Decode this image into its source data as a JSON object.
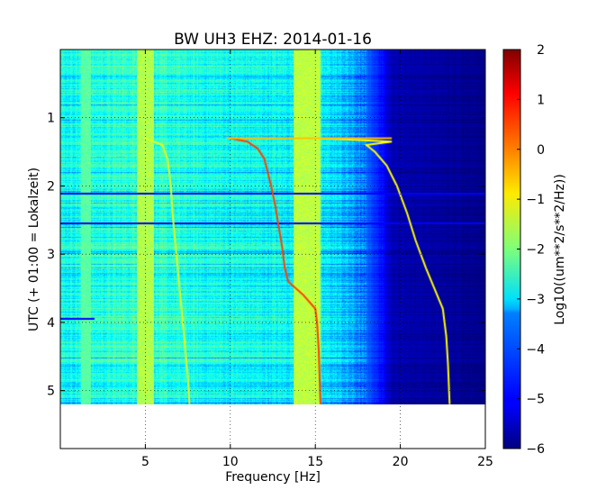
{
  "chart_data": {
    "type": "heatmap",
    "title": "BW UH3 EHZ: 2014-01-16",
    "xlabel": "Frequency [Hz]",
    "ylabel": "UTC (+ 01:00 = Lokalzeit)",
    "colorbar_label": "Log10((um**2/s**2/Hz))",
    "xlim": [
      0,
      25
    ],
    "ylim": [
      5.85,
      0
    ],
    "data_ymax": 5.2,
    "clim": [
      -6,
      2
    ],
    "x_ticks": [
      5,
      10,
      15,
      20,
      25
    ],
    "x_tick_labels": [
      "5",
      "10",
      "15",
      "20",
      "25"
    ],
    "y_ticks": [
      1,
      2,
      3,
      4,
      5
    ],
    "y_tick_labels": [
      "1",
      "2",
      "3",
      "4",
      "5"
    ],
    "colorbar_ticks": [
      2,
      1,
      0,
      -1,
      -2,
      -3,
      -4,
      -5,
      -6
    ],
    "colorbar_tick_labels": [
      "2",
      "1",
      "0",
      "−1",
      "−2",
      "−3",
      "−4",
      "−5",
      "−6"
    ],
    "colormap": "jet",
    "grid": true,
    "traces": [
      {
        "t": [
          1.3,
          1.4,
          1.6,
          1.8,
          2.0,
          2.4,
          2.8,
          3.2,
          3.6,
          4.0,
          4.4,
          4.8,
          5.2
        ],
        "f": [
          5.0,
          6.0,
          6.3,
          6.4,
          6.5,
          6.6,
          6.75,
          6.9,
          7.05,
          7.2,
          7.35,
          7.5,
          7.6
        ],
        "level": -1.2
      },
      {
        "t": [
          1.3,
          1.35,
          1.45,
          1.6,
          1.8,
          2.0,
          2.3,
          2.6,
          2.9,
          3.2,
          3.4,
          3.6,
          3.8,
          4.0,
          4.4,
          4.8,
          5.2
        ],
        "f": [
          10.0,
          11.0,
          11.6,
          12.0,
          12.2,
          12.4,
          12.65,
          12.85,
          13.05,
          13.2,
          13.4,
          14.3,
          15.0,
          15.1,
          15.2,
          15.25,
          15.3
        ],
        "level": 0.5
      },
      {
        "t": [
          1.3,
          1.32,
          1.35,
          1.4,
          1.5,
          1.7,
          2.0,
          2.4,
          2.8,
          3.2,
          3.5,
          3.8,
          4.2,
          4.6,
          5.2
        ],
        "f": [
          15.0,
          17.0,
          19.5,
          18.0,
          18.5,
          19.2,
          19.8,
          20.4,
          20.9,
          21.5,
          22.0,
          22.5,
          22.7,
          22.8,
          22.9
        ],
        "level": -1.0
      },
      {
        "t": [
          1.3,
          1.3
        ],
        "f": [
          9.8,
          19.5
        ],
        "level": -0.5
      }
    ],
    "bands": [
      {
        "f": 5.0,
        "width": 0.5,
        "level": -1.6
      },
      {
        "f": 14.5,
        "width": 0.8,
        "level": -1.5
      },
      {
        "f": 1.5,
        "width": 0.3,
        "level": -2.3
      }
    ],
    "spectrum_profile": {
      "f": [
        0,
        4,
        10,
        14,
        16,
        17,
        18,
        18.5,
        19,
        19.5,
        25
      ],
      "level": [
        -2.9,
        -2.6,
        -2.9,
        -3.0,
        -3.2,
        -3.6,
        -4.2,
        -4.6,
        -5.0,
        -5.6,
        -5.9
      ]
    },
    "event_rows": [
      {
        "t": 3.93,
        "f_to": 2.0,
        "level": -5.0
      },
      {
        "t": 2.1,
        "f_to": 25,
        "level": -5.0
      },
      {
        "t": 2.53,
        "f_to": 25,
        "level": -5.0
      }
    ]
  }
}
